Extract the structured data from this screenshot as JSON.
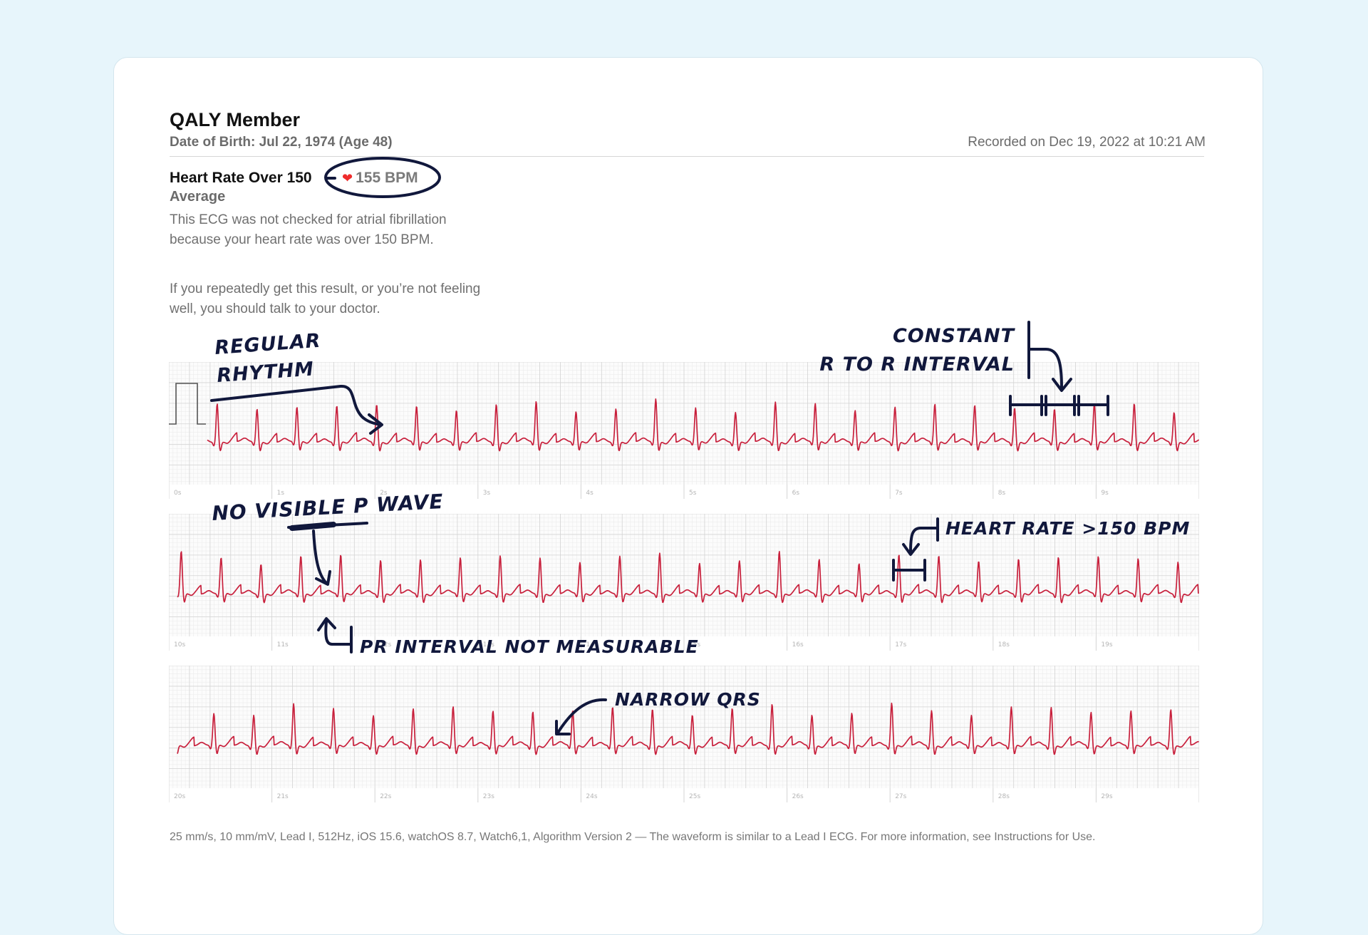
{
  "patient": {
    "name": "QALY Member",
    "dob": "Date of Birth: Jul 22, 1974 (Age 48)",
    "recorded": "Recorded on Dec 19, 2022 at 10:21 AM"
  },
  "result": {
    "title": "Heart Rate Over 150",
    "subtitle": "Average",
    "bpm": "155 BPM",
    "description": "This ECG was not checked for atrial fibrillation because your heart rate was over 150 BPM.",
    "advice": "If you repeatedly get this result, or you’re not feeling well, you should talk to your doctor."
  },
  "strips": [
    {
      "seconds": [
        "0s",
        "1s",
        "2s",
        "3s",
        "4s",
        "5s",
        "6s",
        "7s",
        "8s",
        "9s"
      ],
      "has_calibration": true
    },
    {
      "seconds": [
        "10s",
        "11s",
        "12s",
        "13s",
        "14s",
        "15s",
        "16s",
        "17s",
        "18s",
        "19s"
      ],
      "has_calibration": false
    },
    {
      "seconds": [
        "20s",
        "21s",
        "22s",
        "23s",
        "24s",
        "25s",
        "26s",
        "27s",
        "28s",
        "29s"
      ],
      "has_calibration": false
    }
  ],
  "annotations": {
    "regular_rhythm_1": "REGULAR",
    "regular_rhythm_2": "RHYTHM",
    "constant_1": "CONSTANT",
    "constant_2": "R TO R INTERVAL",
    "no_p_wave": "NO VISIBLE P WAVE",
    "heart_rate": "HEART RATE >150 BPM",
    "pr_interval": "PR INTERVAL NOT MEASURABLE",
    "narrow_qrs": "NARROW QRS"
  },
  "footer": "25 mm/s, 10 mm/mV, Lead I, 512Hz, iOS 15.6, watchOS 8.7, Watch6,1, Algorithm Version 2 — The waveform is similar to a Lead I ECG. For more information, see Instructions for Use.",
  "colors": {
    "waveform": "#c8203c",
    "grid_minor": "#ececec",
    "grid_major": "#d4d4d4",
    "annotation_ink": "#11183c",
    "heart": "#ef2b2b"
  }
}
